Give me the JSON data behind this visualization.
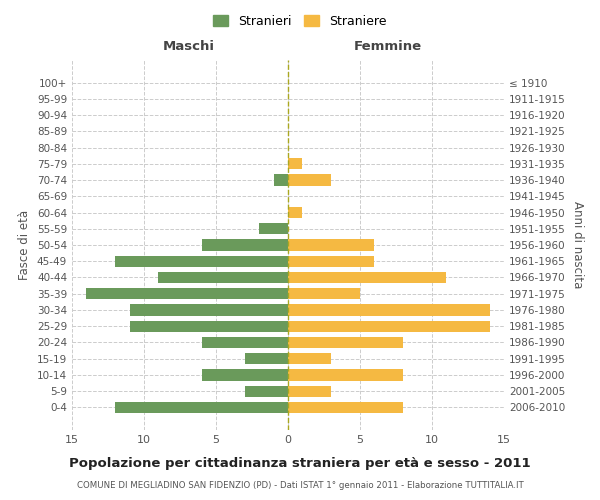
{
  "age_groups": [
    "0-4",
    "5-9",
    "10-14",
    "15-19",
    "20-24",
    "25-29",
    "30-34",
    "35-39",
    "40-44",
    "45-49",
    "50-54",
    "55-59",
    "60-64",
    "65-69",
    "70-74",
    "75-79",
    "80-84",
    "85-89",
    "90-94",
    "95-99",
    "100+"
  ],
  "birth_years": [
    "2006-2010",
    "2001-2005",
    "1996-2000",
    "1991-1995",
    "1986-1990",
    "1981-1985",
    "1976-1980",
    "1971-1975",
    "1966-1970",
    "1961-1965",
    "1956-1960",
    "1951-1955",
    "1946-1950",
    "1941-1945",
    "1936-1940",
    "1931-1935",
    "1926-1930",
    "1921-1925",
    "1916-1920",
    "1911-1915",
    "≤ 1910"
  ],
  "maschi": [
    12,
    3,
    6,
    3,
    6,
    11,
    11,
    14,
    9,
    12,
    6,
    2,
    0,
    0,
    1,
    0,
    0,
    0,
    0,
    0,
    0
  ],
  "femmine": [
    8,
    3,
    8,
    3,
    8,
    14,
    14,
    5,
    11,
    6,
    6,
    0,
    1,
    0,
    3,
    1,
    0,
    0,
    0,
    0,
    0
  ],
  "color_maschi": "#6a9a5b",
  "color_femmine": "#f5b942",
  "title": "Popolazione per cittadinanza straniera per età e sesso - 2011",
  "subtitle": "COMUNE DI MEGLIADINO SAN FIDENZIO (PD) - Dati ISTAT 1° gennaio 2011 - Elaborazione TUTTITALIA.IT",
  "label_maschi": "Maschi",
  "label_femmine": "Femmine",
  "ylabel_left": "Fasce di età",
  "ylabel_right": "Anni di nascita",
  "legend_maschi": "Stranieri",
  "legend_femmine": "Straniere",
  "xlim": 15,
  "background_color": "#ffffff",
  "grid_color": "#cccccc",
  "dashed_line_color": "#aaa820"
}
